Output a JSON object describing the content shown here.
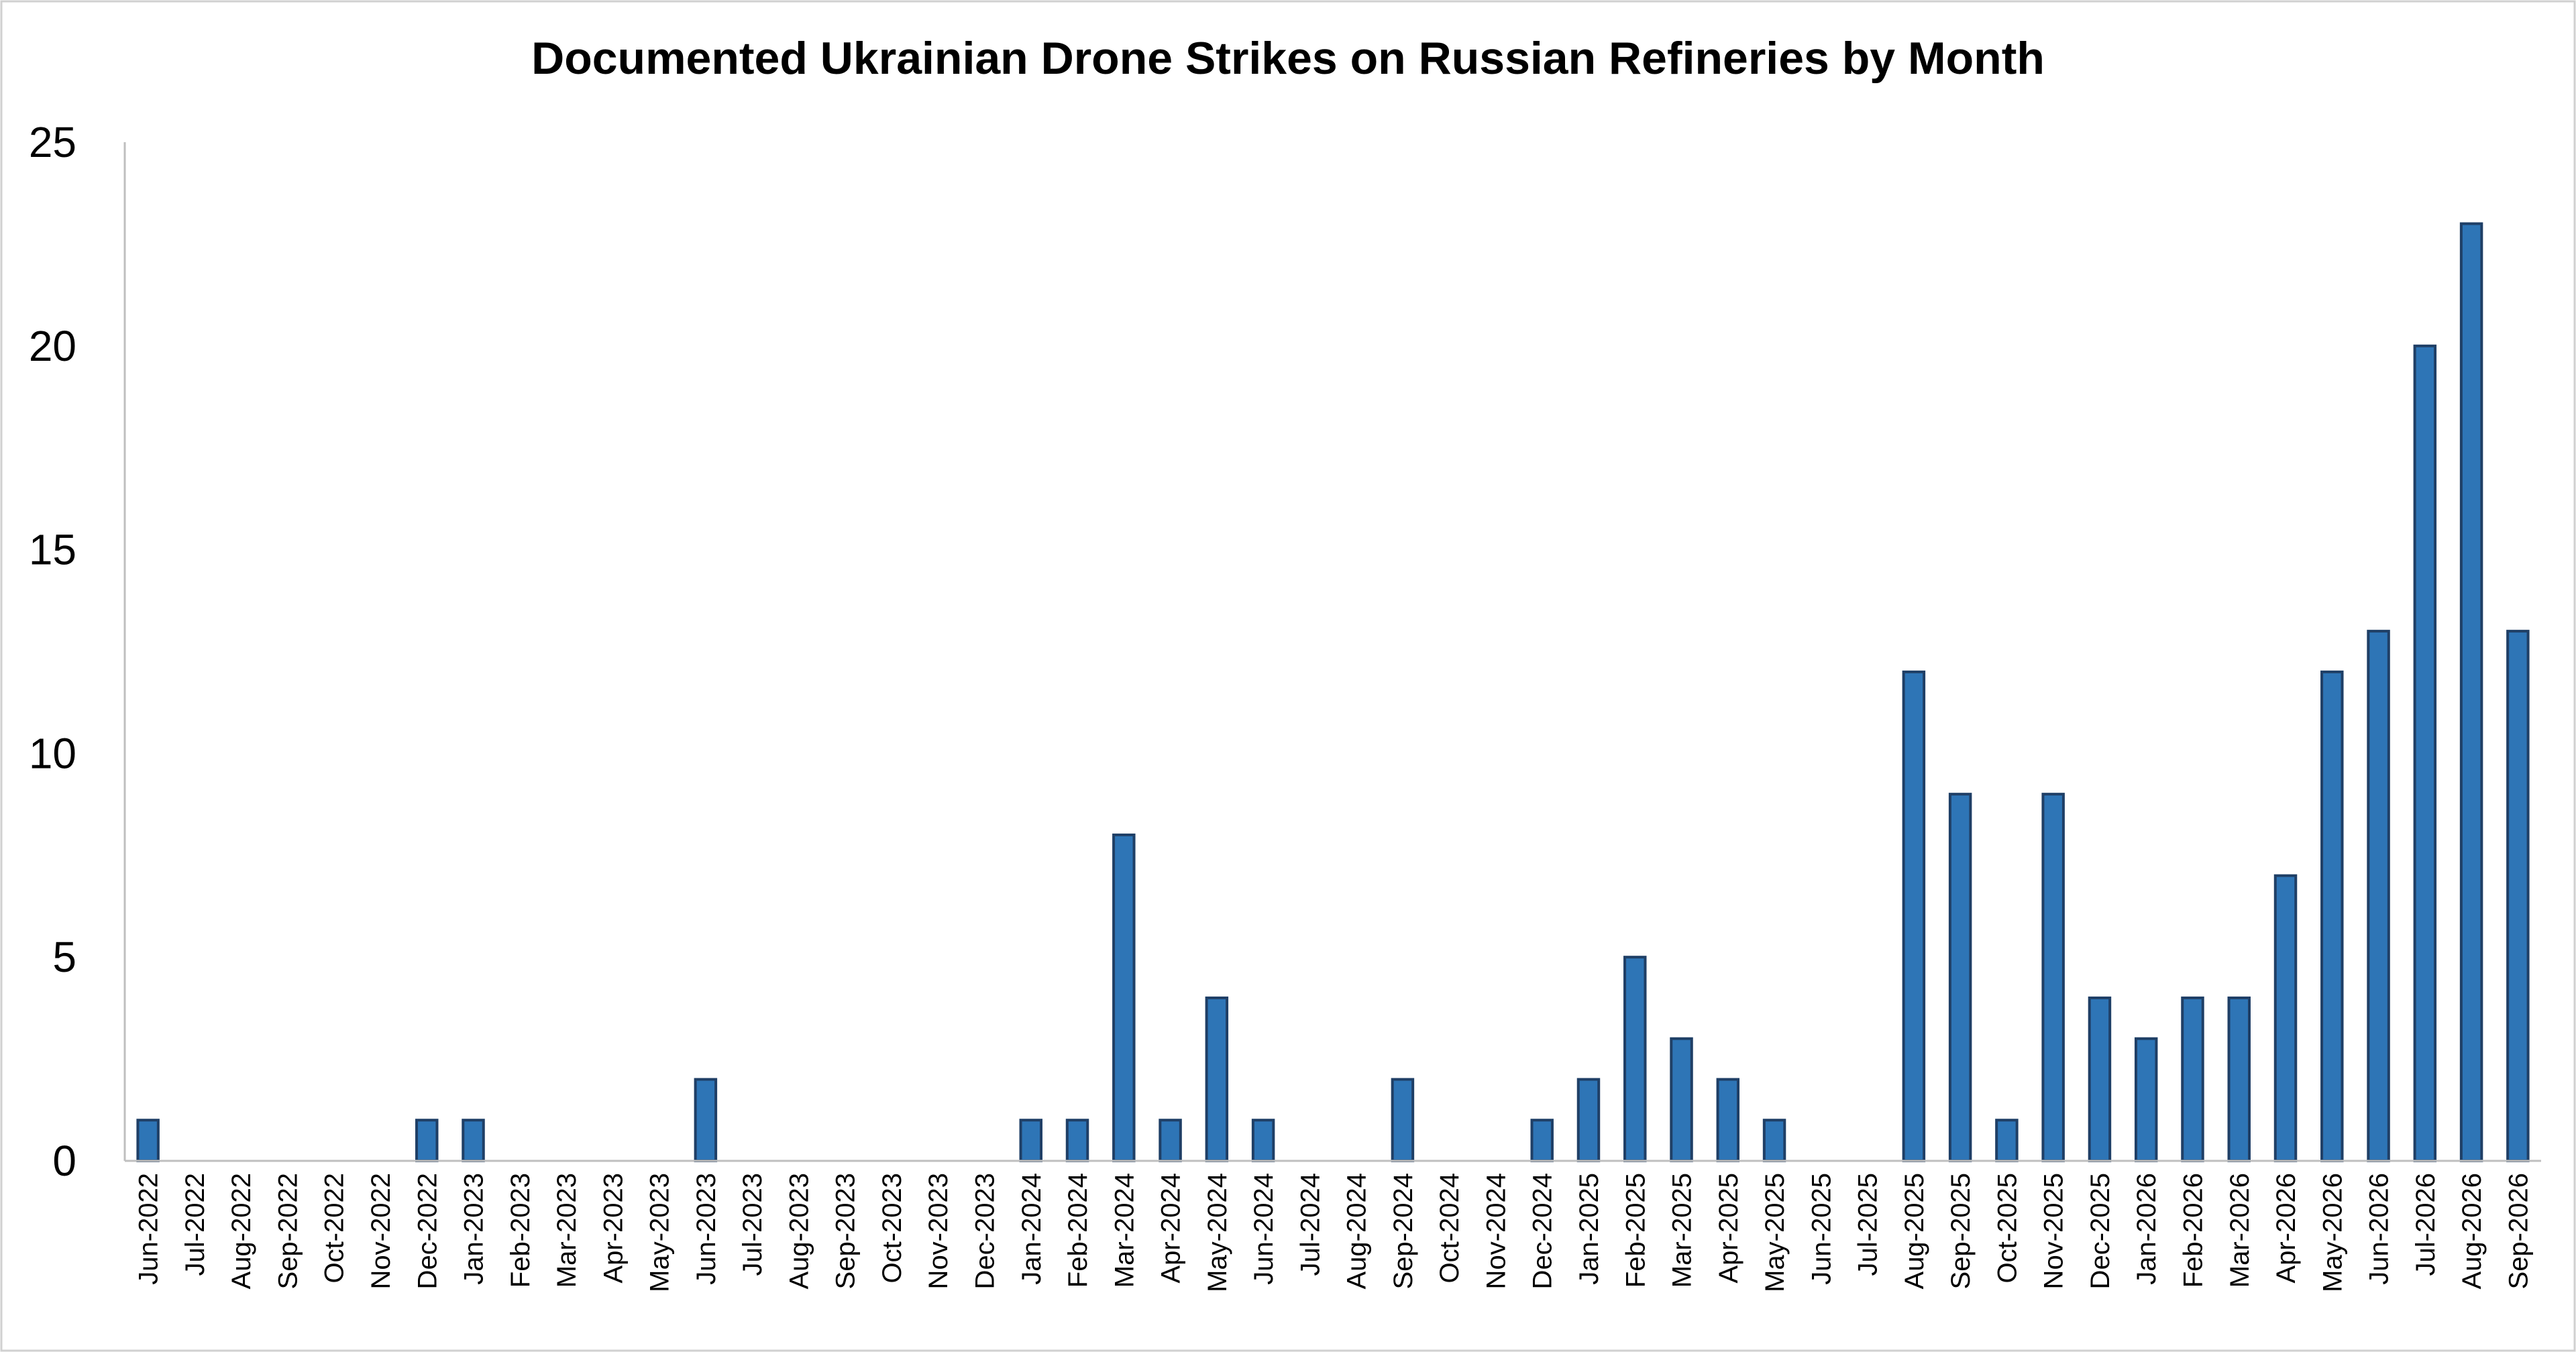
{
  "chart_data": {
    "type": "bar",
    "title": "Documented Ukrainian Drone Strikes on Russian Refineries by Month",
    "xlabel": "",
    "ylabel": "",
    "ylim": [
      0,
      25
    ],
    "yticks": [
      0,
      5,
      10,
      15,
      20,
      25
    ],
    "grid": false,
    "legend": "none",
    "bar_color": "#2E75B6",
    "categories": [
      "Jun-2022",
      "Jul-2022",
      "Aug-2022",
      "Sep-2022",
      "Oct-2022",
      "Nov-2022",
      "Dec-2022",
      "Jan-2023",
      "Feb-2023",
      "Mar-2023",
      "Apr-2023",
      "May-2023",
      "Jun-2023",
      "Jul-2023",
      "Aug-2023",
      "Sep-2023",
      "Oct-2023",
      "Nov-2023",
      "Dec-2023",
      "Jan-2024",
      "Feb-2024",
      "Mar-2024",
      "Apr-2024",
      "May-2024",
      "Jun-2024",
      "Jul-2024",
      "Aug-2024",
      "Sep-2024",
      "Oct-2024",
      "Nov-2024",
      "Dec-2024",
      "Jan-2025",
      "Feb-2025",
      "Mar-2025",
      "Apr-2025",
      "May-2025",
      "Jun-2025",
      "Jul-2025",
      "Aug-2025",
      "Sep-2025",
      "Oct-2025",
      "Nov-2025",
      "Dec-2025",
      "Jan-2026",
      "Feb-2026",
      "Mar-2026",
      "Apr-2026",
      "May-2026",
      "Jun-2026",
      "Jul-2026",
      "Aug-2026",
      "Sep-2026"
    ],
    "values": [
      1,
      0,
      0,
      0,
      0,
      0,
      1,
      1,
      0,
      0,
      0,
      0,
      2,
      0,
      0,
      0,
      0,
      0,
      0,
      1,
      1,
      8,
      1,
      4,
      1,
      0,
      0,
      2,
      0,
      0,
      1,
      2,
      5,
      3,
      2,
      1,
      0,
      0,
      12,
      9,
      1,
      9,
      4,
      3,
      4,
      4,
      7,
      12,
      13,
      20,
      23,
      13
    ]
  }
}
